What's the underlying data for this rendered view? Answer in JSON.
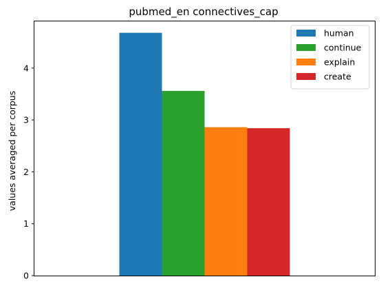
{
  "chart_data": {
    "type": "bar",
    "title": "pubmed_en connectives_cap",
    "xlabel": "",
    "ylabel": "values averaged per corpus",
    "categories": [
      ""
    ],
    "ylim": [
      0,
      4.9
    ],
    "yticks": [
      0,
      1,
      2,
      3,
      4
    ],
    "grid": false,
    "legend_position": "top-right",
    "series": [
      {
        "name": "human",
        "values": [
          4.68
        ],
        "color": "#1f77b4"
      },
      {
        "name": "continue",
        "values": [
          3.56
        ],
        "color": "#2ca02c"
      },
      {
        "name": "explain",
        "values": [
          2.86
        ],
        "color": "#ff7f0e"
      },
      {
        "name": "create",
        "values": [
          2.84
        ],
        "color": "#d62728"
      }
    ]
  }
}
